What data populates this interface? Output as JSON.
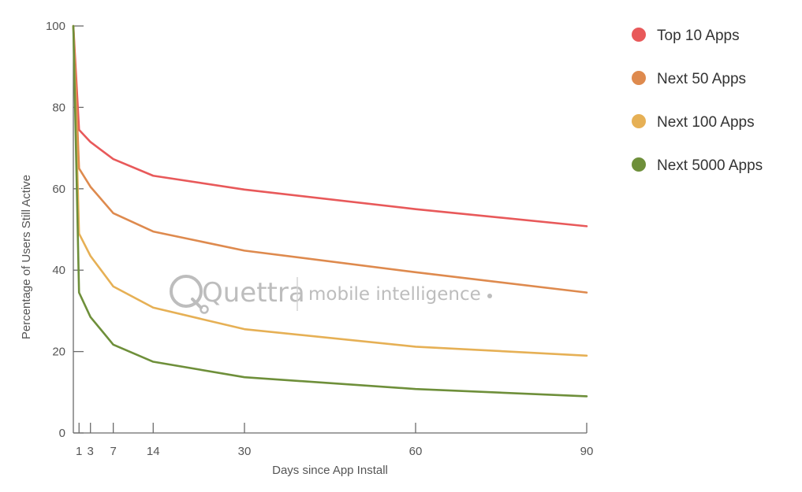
{
  "chart_data": {
    "type": "line",
    "xlabel": "Days since App Install",
    "ylabel": "Percentage of Users Still Active",
    "xlim": [
      0,
      90
    ],
    "ylim": [
      0,
      100
    ],
    "x_ticks": [
      1,
      3,
      7,
      14,
      30,
      60,
      90
    ],
    "y_ticks": [
      0,
      20,
      40,
      60,
      80,
      100
    ],
    "grid": false,
    "legend_position": "top-right",
    "x": [
      0,
      1,
      3,
      7,
      14,
      30,
      60,
      90
    ],
    "series": [
      {
        "name": "Top 10 Apps",
        "color": "#e8595a",
        "values": [
          100,
          74.5,
          71.5,
          67.3,
          63.2,
          59.8,
          55.0,
          50.8
        ]
      },
      {
        "name": "Next 50 Apps",
        "color": "#de8a4e",
        "values": [
          100,
          65.0,
          60.5,
          54.0,
          49.5,
          44.8,
          39.5,
          34.5
        ]
      },
      {
        "name": "Next 100 Apps",
        "color": "#e6b055",
        "values": [
          100,
          49.0,
          43.5,
          36.0,
          30.8,
          25.5,
          21.2,
          19.0
        ]
      },
      {
        "name": "Next 5000 Apps",
        "color": "#6e8f3a",
        "values": [
          100,
          34.5,
          28.5,
          21.7,
          17.5,
          13.7,
          10.8,
          9.0
        ]
      }
    ]
  },
  "watermark": {
    "brand": "Quettra",
    "tagline": "mobile intelligence"
  }
}
